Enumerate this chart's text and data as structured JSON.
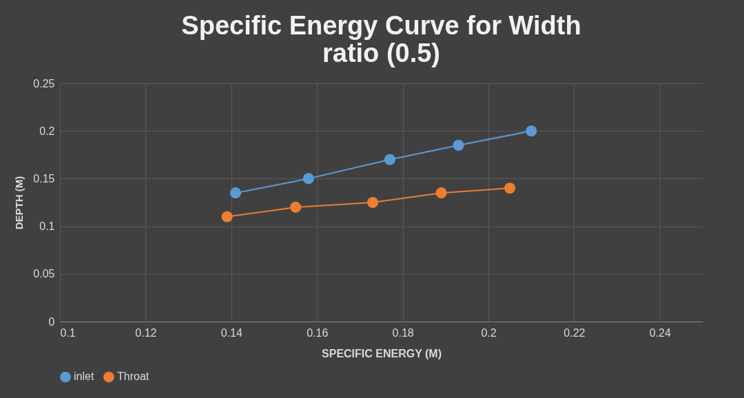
{
  "chart_data": {
    "type": "line",
    "title": "Specific Energy Curve for Width ratio (0.5)",
    "xlabel": "SPECIFIC ENERGY (M)",
    "ylabel": "DEPTH (M)",
    "xlim": [
      0.1,
      0.25
    ],
    "xticks": [
      0.1,
      0.12,
      0.14,
      0.16,
      0.18,
      0.2,
      0.22,
      0.24
    ],
    "ylim": [
      0,
      0.25
    ],
    "yticks": [
      0,
      0.05,
      0.1,
      0.15,
      0.2,
      0.25
    ],
    "grid": true,
    "legend": "bottom",
    "marker": "circle",
    "line_style": "solid",
    "series": [
      {
        "name": "inlet",
        "color": "#5b9bd5",
        "x": [
          0.141,
          0.158,
          0.177,
          0.193,
          0.21
        ],
        "values": [
          0.135,
          0.15,
          0.17,
          0.185,
          0.2
        ]
      },
      {
        "name": "Throat",
        "color": "#ed7d31",
        "x": [
          0.139,
          0.155,
          0.173,
          0.189,
          0.205
        ],
        "values": [
          0.11,
          0.12,
          0.125,
          0.135,
          0.14
        ]
      }
    ]
  }
}
